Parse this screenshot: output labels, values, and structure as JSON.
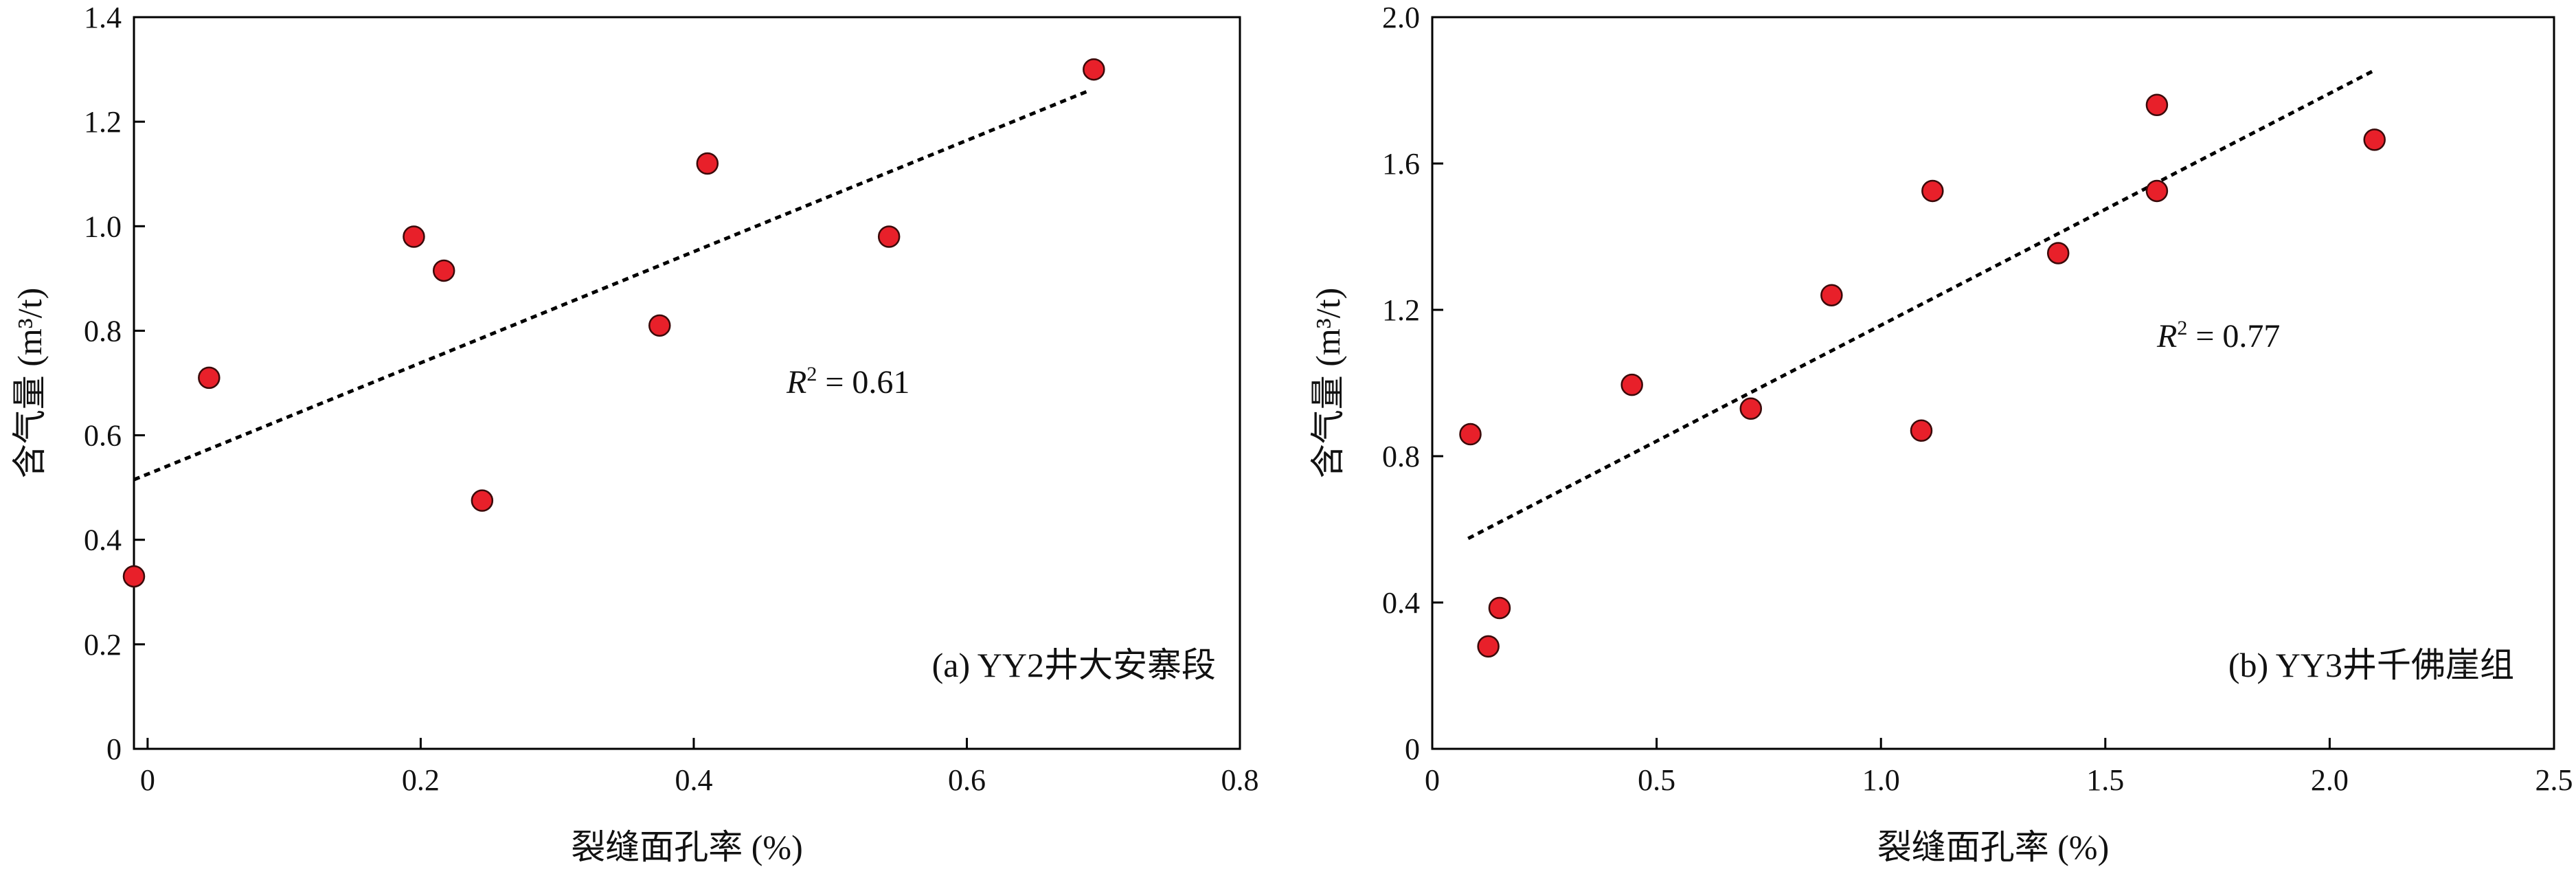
{
  "chart_data": [
    {
      "type": "scatter",
      "panel_label": "(a) YY2井大安寨段",
      "xlabel": "裂缝面孔率 (%)",
      "ylabel": "含气量 (m³/t)",
      "xlim": [
        -0.01,
        0.8
      ],
      "ylim": [
        0,
        1.4
      ],
      "xticks": [
        0,
        0.2,
        0.4,
        0.6,
        0.8
      ],
      "xtick_labels": [
        "0",
        "0.2",
        "0.4",
        "0.6",
        "0.8"
      ],
      "yticks": [
        0,
        0.2,
        0.4,
        0.6,
        0.8,
        1.0,
        1.2,
        1.4
      ],
      "ytick_labels": [
        "0",
        "0.2",
        "0.4",
        "0.6",
        "0.8",
        "1.0",
        "1.2",
        "1.4"
      ],
      "points": [
        {
          "x": -0.01,
          "y": 0.33
        },
        {
          "x": 0.045,
          "y": 0.71
        },
        {
          "x": 0.195,
          "y": 0.98
        },
        {
          "x": 0.217,
          "y": 0.915
        },
        {
          "x": 0.245,
          "y": 0.475
        },
        {
          "x": 0.375,
          "y": 0.81
        },
        {
          "x": 0.41,
          "y": 1.12
        },
        {
          "x": 0.543,
          "y": 0.98
        },
        {
          "x": 0.693,
          "y": 1.3
        }
      ],
      "trendline": {
        "x": [
          -0.01,
          0.69
        ],
        "y": [
          0.515,
          1.26
        ]
      },
      "r2_label": "R",
      "r2_sup": "2",
      "r2_value": " = 0.61",
      "point_color": "#e8202a",
      "point_stroke": "#3a0a0a",
      "grid": false
    },
    {
      "type": "scatter",
      "panel_label": "(b) YY3井千佛崖组",
      "xlabel": "裂缝面孔率 (%)",
      "ylabel": "含气量 (m³/t)",
      "xlim": [
        0,
        2.5
      ],
      "ylim": [
        0,
        2.0
      ],
      "xticks": [
        0,
        0.5,
        1.0,
        1.5,
        2.0,
        2.5
      ],
      "xtick_labels": [
        "0",
        "0.5",
        "1.0",
        "1.5",
        "2.0",
        "2.5"
      ],
      "yticks": [
        0,
        0.4,
        0.8,
        1.2,
        1.6,
        2.0
      ],
      "ytick_labels": [
        "0",
        "0.4",
        "0.8",
        "1.2",
        "1.6",
        "2.0"
      ],
      "points": [
        {
          "x": 0.085,
          "y": 0.86
        },
        {
          "x": 0.125,
          "y": 0.28
        },
        {
          "x": 0.15,
          "y": 0.385
        },
        {
          "x": 0.445,
          "y": 0.995
        },
        {
          "x": 0.71,
          "y": 0.93
        },
        {
          "x": 0.89,
          "y": 1.24
        },
        {
          "x": 1.09,
          "y": 0.87
        },
        {
          "x": 1.115,
          "y": 1.525
        },
        {
          "x": 1.395,
          "y": 1.355
        },
        {
          "x": 1.615,
          "y": 1.76
        },
        {
          "x": 1.615,
          "y": 1.525
        },
        {
          "x": 2.1,
          "y": 1.665
        }
      ],
      "trendline": {
        "x": [
          0.08,
          2.1
        ],
        "y": [
          0.575,
          1.855
        ]
      },
      "r2_label": "R",
      "r2_sup": "2",
      "r2_value": " = 0.77",
      "point_color": "#e8202a",
      "point_stroke": "#3a0a0a",
      "grid": false
    }
  ]
}
